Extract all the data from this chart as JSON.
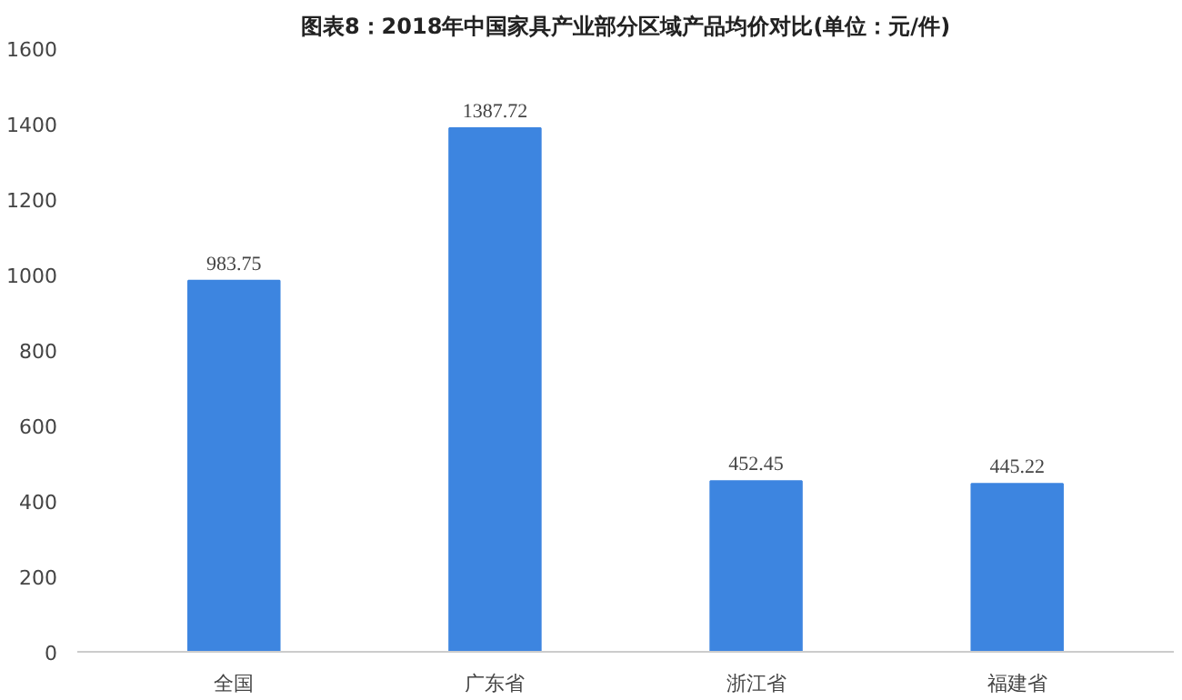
{
  "chart_data": {
    "type": "bar",
    "title": "图表8：2018年中国家具产业部分区域产品均价对比(单位：元/件)",
    "categories": [
      "全国",
      "广东省",
      "浙江省",
      "福建省"
    ],
    "values": [
      983.75,
      1387.72,
      452.45,
      445.22
    ],
    "color": "#3d85e0",
    "ylim": [
      0,
      1600
    ],
    "yticks": [
      0,
      200,
      400,
      600,
      800,
      1000,
      1200,
      1400,
      1600
    ],
    "grid": false,
    "data_labels": true
  }
}
